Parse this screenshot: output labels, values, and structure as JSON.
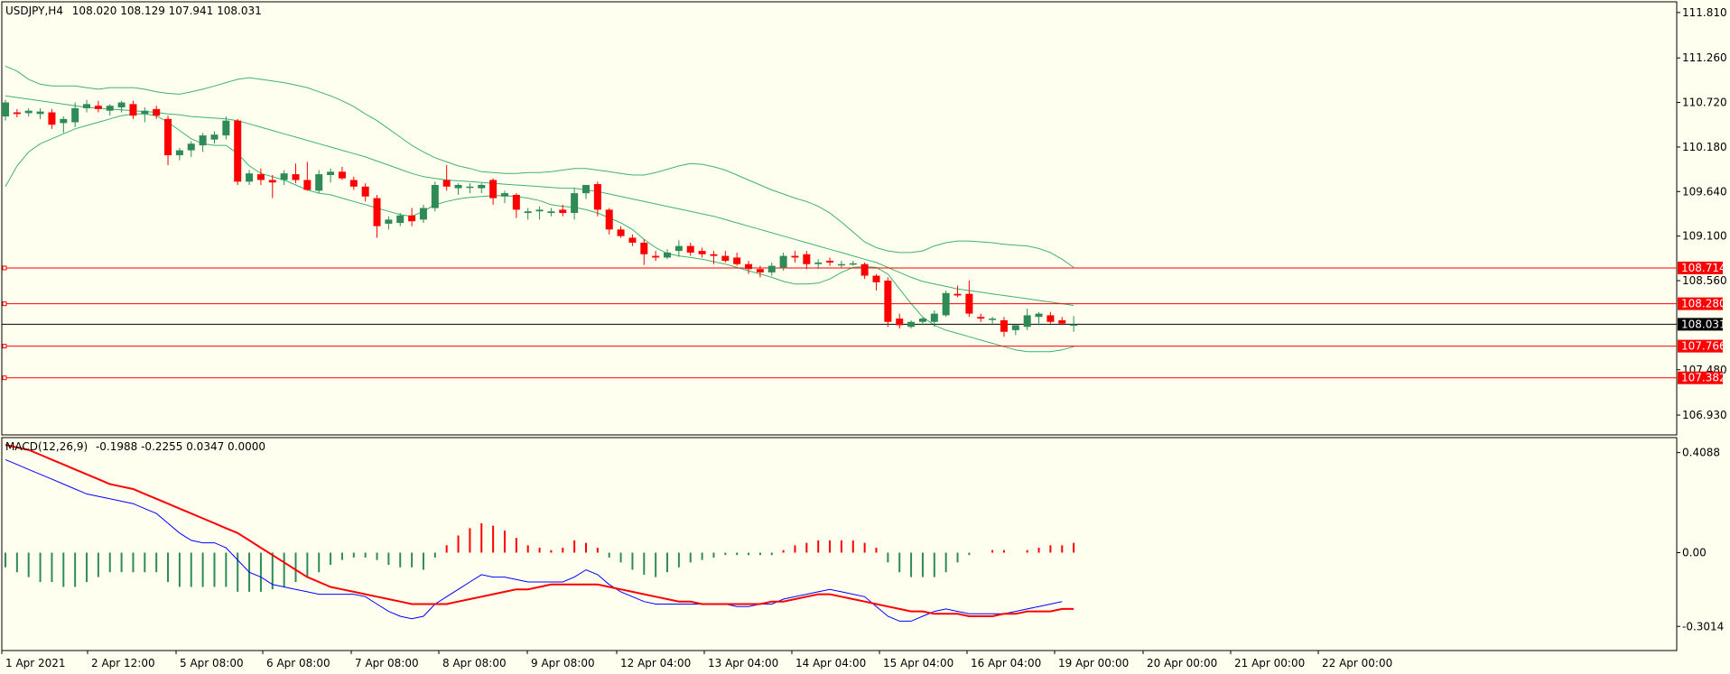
{
  "colors": {
    "background": "#fffff0",
    "bull": "#2e8b57",
    "bear": "#ff0000",
    "band": "#3cb371",
    "level": "#ff0000",
    "macd_line": "#0000ff",
    "signal_line": "#ff0000",
    "current_price_tag": "#000000"
  },
  "header": {
    "symbol_tf": "USDJPY,H4",
    "ohlc": "108.020 108.129 107.941 108.031"
  },
  "chart_data": [
    {
      "type": "candlestick",
      "title": "USDJPY,H4",
      "ylim": [
        106.69,
        111.94
      ],
      "y_ticks": [
        "111.810",
        "111.260",
        "110.720",
        "110.180",
        "109.640",
        "109.100",
        "108.560",
        "107.480",
        "106.930"
      ],
      "x_ticks": [
        "1 Apr 2021",
        "2 Apr 12:00",
        "5 Apr 08:00",
        "6 Apr 08:00",
        "7 Apr 08:00",
        "8 Apr 08:00",
        "9 Apr 08:00",
        "12 Apr 04:00",
        "13 Apr 04:00",
        "14 Apr 04:00",
        "15 Apr 04:00",
        "16 Apr 04:00",
        "19 Apr 00:00",
        "20 Apr 00:00",
        "21 Apr 00:00",
        "22 Apr 00:00"
      ],
      "levels": [
        {
          "value": 108.714,
          "label": "108.714"
        },
        {
          "value": 108.28,
          "label": "108.280"
        },
        {
          "value": 107.766,
          "label": "107.766"
        },
        {
          "value": 107.382,
          "label": "107.382"
        }
      ],
      "current_price": {
        "value": 108.031,
        "label": "108.031"
      },
      "candles": [
        [
          110.55,
          110.75,
          110.5,
          110.72
        ],
        [
          110.6,
          110.64,
          110.54,
          110.58
        ],
        [
          110.59,
          110.65,
          110.55,
          110.62
        ],
        [
          110.58,
          110.65,
          110.52,
          110.61
        ],
        [
          110.6,
          110.64,
          110.4,
          110.45
        ],
        [
          110.47,
          110.55,
          110.35,
          110.52
        ],
        [
          110.48,
          110.72,
          110.42,
          110.65
        ],
        [
          110.65,
          110.75,
          110.6,
          110.7
        ],
        [
          110.68,
          110.74,
          110.6,
          110.64
        ],
        [
          110.62,
          110.7,
          110.56,
          110.68
        ],
        [
          110.66,
          110.74,
          110.6,
          110.72
        ],
        [
          110.7,
          110.74,
          110.52,
          110.56
        ],
        [
          110.58,
          110.66,
          110.48,
          110.62
        ],
        [
          110.64,
          110.68,
          110.52,
          110.56
        ],
        [
          110.52,
          110.56,
          109.96,
          110.08
        ],
        [
          110.08,
          110.17,
          110.02,
          110.14
        ],
        [
          110.14,
          110.25,
          110.06,
          110.22
        ],
        [
          110.2,
          110.35,
          110.12,
          110.32
        ],
        [
          110.27,
          110.37,
          110.22,
          110.33
        ],
        [
          110.32,
          110.55,
          110.27,
          110.5
        ],
        [
          110.5,
          110.52,
          109.72,
          109.76
        ],
        [
          109.76,
          109.9,
          109.72,
          109.86
        ],
        [
          109.85,
          109.92,
          109.72,
          109.78
        ],
        [
          109.78,
          109.84,
          109.56,
          109.75
        ],
        [
          109.78,
          109.9,
          109.72,
          109.86
        ],
        [
          109.85,
          109.98,
          109.74,
          109.78
        ],
        [
          109.78,
          110.0,
          109.65,
          109.66
        ],
        [
          109.65,
          109.9,
          109.62,
          109.85
        ],
        [
          109.84,
          109.92,
          109.75,
          109.88
        ],
        [
          109.88,
          109.94,
          109.78,
          109.8
        ],
        [
          109.78,
          109.82,
          109.66,
          109.7
        ],
        [
          109.7,
          109.74,
          109.52,
          109.58
        ],
        [
          109.56,
          109.6,
          109.08,
          109.22
        ],
        [
          109.25,
          109.34,
          109.18,
          109.3
        ],
        [
          109.26,
          109.38,
          109.22,
          109.35
        ],
        [
          109.35,
          109.44,
          109.22,
          109.28
        ],
        [
          109.3,
          109.48,
          109.26,
          109.44
        ],
        [
          109.44,
          109.76,
          109.4,
          109.72
        ],
        [
          109.78,
          109.96,
          109.65,
          109.7
        ],
        [
          109.68,
          109.74,
          109.6,
          109.72
        ],
        [
          109.7,
          109.74,
          109.62,
          109.7
        ],
        [
          109.68,
          109.74,
          109.62,
          109.72
        ],
        [
          109.78,
          109.8,
          109.48,
          109.56
        ],
        [
          109.58,
          109.65,
          109.5,
          109.62
        ],
        [
          109.6,
          109.62,
          109.32,
          109.42
        ],
        [
          109.38,
          109.44,
          109.3,
          109.4
        ],
        [
          109.4,
          109.46,
          109.3,
          109.42
        ],
        [
          109.38,
          109.44,
          109.34,
          109.4
        ],
        [
          109.42,
          109.48,
          109.34,
          109.38
        ],
        [
          109.38,
          109.68,
          109.3,
          109.62
        ],
        [
          109.62,
          109.72,
          109.55,
          109.72
        ],
        [
          109.73,
          109.76,
          109.34,
          109.42
        ],
        [
          109.42,
          109.44,
          109.12,
          109.18
        ],
        [
          109.18,
          109.22,
          109.08,
          109.1
        ],
        [
          109.08,
          109.12,
          108.98,
          109.02
        ],
        [
          109.02,
          109.06,
          108.75,
          108.88
        ],
        [
          108.86,
          108.92,
          108.8,
          108.84
        ],
        [
          108.84,
          108.94,
          108.82,
          108.9
        ],
        [
          108.92,
          109.05,
          108.85,
          108.98
        ],
        [
          108.98,
          109.02,
          108.86,
          108.9
        ],
        [
          108.92,
          108.96,
          108.84,
          108.88
        ],
        [
          108.88,
          108.92,
          108.76,
          108.86
        ],
        [
          108.86,
          108.92,
          108.78,
          108.8
        ],
        [
          108.84,
          108.9,
          108.74,
          108.76
        ],
        [
          108.76,
          108.8,
          108.64,
          108.7
        ],
        [
          108.7,
          108.74,
          108.6,
          108.66
        ],
        [
          108.66,
          108.78,
          108.62,
          108.74
        ],
        [
          108.72,
          108.9,
          108.68,
          108.86
        ],
        [
          108.86,
          108.92,
          108.78,
          108.84
        ],
        [
          108.88,
          108.92,
          108.7,
          108.76
        ],
        [
          108.76,
          108.82,
          108.7,
          108.78
        ],
        [
          108.8,
          108.84,
          108.74,
          108.78
        ],
        [
          108.76,
          108.8,
          108.72,
          108.76
        ],
        [
          108.76,
          108.8,
          108.74,
          108.77
        ],
        [
          108.76,
          108.78,
          108.58,
          108.62
        ],
        [
          108.62,
          108.64,
          108.44,
          108.54
        ],
        [
          108.56,
          108.6,
          108.0,
          108.06
        ],
        [
          108.1,
          108.16,
          107.98,
          108.02
        ],
        [
          108.0,
          108.08,
          107.98,
          108.06
        ],
        [
          108.06,
          108.12,
          108.02,
          108.1
        ],
        [
          108.06,
          108.2,
          108.0,
          108.16
        ],
        [
          108.14,
          108.44,
          108.12,
          108.41
        ],
        [
          108.4,
          108.5,
          108.36,
          108.38
        ],
        [
          108.4,
          108.56,
          108.12,
          108.16
        ],
        [
          108.12,
          108.16,
          108.06,
          108.1
        ],
        [
          108.1,
          108.12,
          108.02,
          108.1
        ],
        [
          108.08,
          108.12,
          107.88,
          107.94
        ],
        [
          107.96,
          108.0,
          107.9,
          108.02
        ],
        [
          108.0,
          108.22,
          107.96,
          108.14
        ],
        [
          108.12,
          108.18,
          108.02,
          108.16
        ],
        [
          108.14,
          108.18,
          108.04,
          108.06
        ],
        [
          108.08,
          108.12,
          108.02,
          108.04
        ],
        [
          108.02,
          108.13,
          107.94,
          108.03
        ]
      ],
      "bollinger_upper": [
        111.16,
        111.1,
        111.0,
        110.94,
        110.92,
        110.92,
        110.92,
        110.9,
        110.88,
        110.9,
        110.9,
        110.9,
        110.88,
        110.85,
        110.83,
        110.82,
        110.85,
        110.88,
        110.92,
        110.96,
        111.0,
        111.02,
        111.0,
        110.98,
        110.96,
        110.93,
        110.9,
        110.85,
        110.8,
        110.74,
        110.67,
        110.58,
        110.5,
        110.4,
        110.3,
        110.2,
        110.12,
        110.05,
        110.0,
        109.95,
        109.92,
        109.88,
        109.87,
        109.86,
        109.86,
        109.87,
        109.87,
        109.88,
        109.9,
        109.92,
        109.92,
        109.9,
        109.88,
        109.86,
        109.84,
        109.84,
        109.87,
        109.91,
        109.95,
        109.98,
        109.97,
        109.94,
        109.9,
        109.84,
        109.78,
        109.72,
        109.66,
        109.61,
        109.56,
        109.52,
        109.46,
        109.38,
        109.27,
        109.15,
        109.03,
        108.96,
        108.92,
        108.9,
        108.9,
        108.92,
        108.98,
        109.02,
        109.04,
        109.04,
        109.03,
        109.02,
        109.0,
        108.99,
        108.98,
        108.95,
        108.9,
        108.82,
        108.72
      ],
      "bollinger_middle": [
        110.8,
        110.78,
        110.76,
        110.74,
        110.72,
        110.7,
        110.68,
        110.66,
        110.65,
        110.64,
        110.63,
        110.62,
        110.61,
        110.6,
        110.58,
        110.57,
        110.55,
        110.54,
        110.53,
        110.52,
        110.5,
        110.46,
        110.42,
        110.38,
        110.34,
        110.3,
        110.26,
        110.22,
        110.18,
        110.14,
        110.1,
        110.06,
        110.01,
        109.96,
        109.91,
        109.86,
        109.82,
        109.8,
        109.78,
        109.77,
        109.76,
        109.75,
        109.74,
        109.73,
        109.72,
        109.71,
        109.7,
        109.69,
        109.68,
        109.68,
        109.66,
        109.64,
        109.61,
        109.58,
        109.55,
        109.52,
        109.49,
        109.46,
        109.43,
        109.4,
        109.37,
        109.34,
        109.3,
        109.26,
        109.22,
        109.18,
        109.14,
        109.1,
        109.06,
        109.02,
        108.98,
        108.94,
        108.9,
        108.86,
        108.82,
        108.78,
        108.72,
        108.66,
        108.6,
        108.55,
        108.52,
        108.49,
        108.46,
        108.44,
        108.42,
        108.4,
        108.38,
        108.36,
        108.34,
        108.32,
        108.3,
        108.28,
        108.26
      ],
      "bollinger_lower": [
        109.7,
        109.95,
        110.12,
        110.22,
        110.28,
        110.34,
        110.4,
        110.44,
        110.48,
        110.52,
        110.56,
        110.58,
        110.58,
        110.56,
        110.48,
        110.38,
        110.28,
        110.22,
        110.2,
        110.2,
        110.1,
        109.95,
        109.86,
        109.82,
        109.78,
        109.72,
        109.66,
        109.62,
        109.6,
        109.56,
        109.52,
        109.48,
        109.44,
        109.4,
        109.36,
        109.34,
        109.4,
        109.48,
        109.52,
        109.55,
        109.57,
        109.58,
        109.59,
        109.59,
        109.58,
        109.56,
        109.53,
        109.48,
        109.46,
        109.45,
        109.42,
        109.38,
        109.32,
        109.26,
        109.18,
        109.06,
        108.96,
        108.89,
        108.86,
        108.84,
        108.82,
        108.79,
        108.76,
        108.72,
        108.68,
        108.64,
        108.6,
        108.55,
        108.52,
        108.52,
        108.53,
        108.58,
        108.66,
        108.72,
        108.73,
        108.72,
        108.64,
        108.46,
        108.28,
        108.12,
        108.02,
        107.96,
        107.92,
        107.88,
        107.84,
        107.8,
        107.76,
        107.72,
        107.7,
        107.7,
        107.7,
        107.72,
        107.76
      ]
    },
    {
      "type": "macd",
      "title": "MACD(12,26,9)",
      "values_text": "-0.1988 -0.2255 0.0347 0.0000",
      "ylim": [
        -0.4,
        0.47
      ],
      "y_ticks": [
        "0.4088",
        "0.00",
        "-0.3014"
      ],
      "histogram": [
        -0.06,
        -0.08,
        -0.1,
        -0.12,
        -0.12,
        -0.14,
        -0.14,
        -0.12,
        -0.1,
        -0.08,
        -0.08,
        -0.08,
        -0.08,
        -0.08,
        -0.12,
        -0.14,
        -0.14,
        -0.14,
        -0.14,
        -0.14,
        -0.16,
        -0.16,
        -0.16,
        -0.15,
        -0.14,
        -0.12,
        -0.1,
        -0.08,
        -0.05,
        -0.03,
        -0.02,
        -0.02,
        -0.03,
        -0.05,
        -0.06,
        -0.06,
        -0.07,
        -0.02,
        0.03,
        0.07,
        0.1,
        0.12,
        0.11,
        0.09,
        0.06,
        0.03,
        0.02,
        0.01,
        0.02,
        0.05,
        0.04,
        0.02,
        -0.02,
        -0.04,
        -0.07,
        -0.09,
        -0.1,
        -0.08,
        -0.06,
        -0.04,
        -0.03,
        -0.02,
        -0.01,
        -0.01,
        -0.01,
        -0.01,
        -0.01,
        0.01,
        0.03,
        0.04,
        0.05,
        0.05,
        0.05,
        0.05,
        0.04,
        0.02,
        -0.04,
        -0.08,
        -0.1,
        -0.1,
        -0.1,
        -0.08,
        -0.04,
        -0.01,
        0.0,
        0.01,
        0.01,
        0.0,
        0.01,
        0.02,
        0.03,
        0.03,
        0.04
      ],
      "macd_line": [
        0.38,
        0.36,
        0.34,
        0.32,
        0.3,
        0.28,
        0.26,
        0.24,
        0.23,
        0.22,
        0.21,
        0.2,
        0.18,
        0.16,
        0.12,
        0.08,
        0.05,
        0.04,
        0.04,
        0.02,
        -0.03,
        -0.08,
        -0.1,
        -0.13,
        -0.14,
        -0.15,
        -0.16,
        -0.17,
        -0.17,
        -0.17,
        -0.17,
        -0.18,
        -0.21,
        -0.24,
        -0.26,
        -0.27,
        -0.26,
        -0.21,
        -0.18,
        -0.15,
        -0.12,
        -0.09,
        -0.1,
        -0.1,
        -0.11,
        -0.12,
        -0.12,
        -0.12,
        -0.12,
        -0.1,
        -0.07,
        -0.09,
        -0.13,
        -0.16,
        -0.18,
        -0.2,
        -0.21,
        -0.21,
        -0.21,
        -0.21,
        -0.21,
        -0.21,
        -0.21,
        -0.22,
        -0.22,
        -0.21,
        -0.21,
        -0.19,
        -0.18,
        -0.17,
        -0.16,
        -0.15,
        -0.16,
        -0.17,
        -0.18,
        -0.22,
        -0.26,
        -0.28,
        -0.28,
        -0.26,
        -0.24,
        -0.23,
        -0.24,
        -0.25,
        -0.25,
        -0.25,
        -0.25,
        -0.24,
        -0.23,
        -0.22,
        -0.21,
        -0.2
      ],
      "signal_line": [
        0.44,
        0.43,
        0.42,
        0.4,
        0.38,
        0.36,
        0.34,
        0.32,
        0.3,
        0.28,
        0.27,
        0.26,
        0.24,
        0.22,
        0.2,
        0.18,
        0.16,
        0.14,
        0.12,
        0.1,
        0.08,
        0.05,
        0.02,
        -0.01,
        -0.04,
        -0.07,
        -0.1,
        -0.12,
        -0.14,
        -0.15,
        -0.16,
        -0.17,
        -0.18,
        -0.19,
        -0.2,
        -0.21,
        -0.21,
        -0.21,
        -0.21,
        -0.2,
        -0.19,
        -0.18,
        -0.17,
        -0.16,
        -0.15,
        -0.15,
        -0.14,
        -0.13,
        -0.13,
        -0.13,
        -0.13,
        -0.13,
        -0.14,
        -0.15,
        -0.16,
        -0.17,
        -0.18,
        -0.19,
        -0.2,
        -0.2,
        -0.21,
        -0.21,
        -0.21,
        -0.21,
        -0.21,
        -0.21,
        -0.2,
        -0.2,
        -0.19,
        -0.18,
        -0.17,
        -0.17,
        -0.18,
        -0.19,
        -0.2,
        -0.21,
        -0.22,
        -0.23,
        -0.24,
        -0.24,
        -0.25,
        -0.25,
        -0.25,
        -0.26,
        -0.26,
        -0.26,
        -0.25,
        -0.25,
        -0.24,
        -0.24,
        -0.24,
        -0.23,
        -0.23
      ]
    }
  ]
}
